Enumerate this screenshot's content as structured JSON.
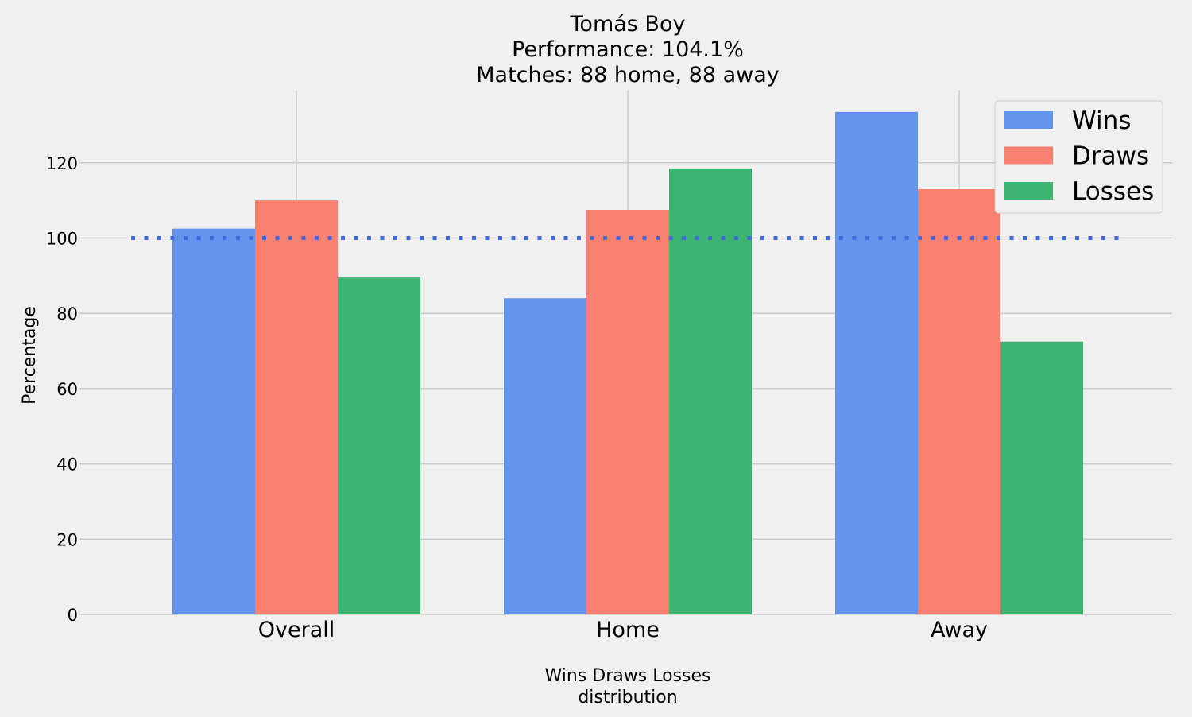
{
  "chart_data": {
    "type": "bar",
    "title": [
      "Tomás Boy",
      "Performance: 104.1%",
      "Matches: 88 home, 88 away"
    ],
    "xlabel": [
      "Wins Draws Losses",
      "distribution"
    ],
    "ylabel": "Percentage",
    "categories": [
      "Overall",
      "Home",
      "Away"
    ],
    "series": [
      {
        "name": "Wins",
        "color": "#6495ed",
        "values": [
          102.5,
          84.0,
          133.5
        ]
      },
      {
        "name": "Draws",
        "color": "#fa8072",
        "values": [
          110.0,
          107.5,
          113.0
        ]
      },
      {
        "name": "Losses",
        "color": "#3cb371",
        "values": [
          89.5,
          118.5,
          72.5
        ]
      }
    ],
    "ylim": [
      0,
      140
    ],
    "yticks": [
      0,
      20,
      40,
      60,
      80,
      100,
      120
    ],
    "reference_line": {
      "y": 100,
      "style": "dotted",
      "color": "#4169e1"
    },
    "grid": true,
    "legend_position": "top-right"
  }
}
